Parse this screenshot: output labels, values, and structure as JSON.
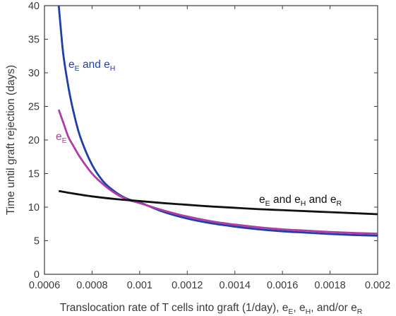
{
  "chart_data": {
    "type": "line",
    "xlabel": {
      "main": "Translocation rate of T cells into graft (1/day), e",
      "sub1": "E",
      "sep1": ", e",
      "sub2": "H",
      "sep2": ", and/or e",
      "sub3": "R"
    },
    "ylabel": "Time until graft rejection (days)",
    "xlim": [
      0.0006,
      0.002
    ],
    "ylim": [
      0,
      40
    ],
    "xticks": [
      0.0006,
      0.0008,
      0.001,
      0.0012,
      0.0014,
      0.0016,
      0.0018,
      0.002
    ],
    "xtick_labels": [
      "0.0006",
      "0.0008",
      "0.001",
      "0.0012",
      "0.0014",
      "0.0016",
      "0.0018",
      "0.002"
    ],
    "yticks": [
      0,
      5,
      10,
      15,
      20,
      25,
      30,
      35,
      40
    ],
    "ytick_labels": [
      "0",
      "5",
      "10",
      "15",
      "20",
      "25",
      "30",
      "35",
      "40"
    ],
    "grid": false,
    "series": [
      {
        "name": "eE and eH",
        "label_parts": [
          "e",
          "E",
          " and e",
          "H"
        ],
        "color": "#1f3fa6",
        "x": [
          0.00066,
          0.00067,
          0.00068,
          0.0007,
          0.00072,
          0.00075,
          0.0008,
          0.00085,
          0.0009,
          0.00095,
          0.001,
          0.0011,
          0.0012,
          0.0013,
          0.0014,
          0.0015,
          0.0016,
          0.0017,
          0.0018,
          0.0019,
          0.002
        ],
        "y": [
          40,
          36,
          32.5,
          28,
          24.5,
          20.5,
          16.3,
          13.7,
          12.2,
          11.2,
          10.7,
          9.3,
          8.3,
          7.6,
          7.1,
          6.7,
          6.4,
          6.2,
          6.0,
          5.85,
          5.75
        ]
      },
      {
        "name": "eE",
        "label_parts": [
          "e",
          "E"
        ],
        "color": "#b03ca8",
        "x": [
          0.00066,
          0.00068,
          0.0007,
          0.00072,
          0.00075,
          0.0008,
          0.00085,
          0.0009,
          0.00095,
          0.001,
          0.0011,
          0.0012,
          0.0013,
          0.0014,
          0.0015,
          0.0016,
          0.0017,
          0.0018,
          0.0019,
          0.002
        ],
        "y": [
          24.5,
          22.5,
          20.5,
          19.2,
          17.4,
          15.0,
          13.3,
          12.0,
          11.1,
          10.6,
          9.5,
          8.6,
          7.9,
          7.4,
          7.0,
          6.7,
          6.5,
          6.3,
          6.15,
          6.05
        ]
      },
      {
        "name": "eE and eH and eR",
        "label_parts": [
          "e",
          "E",
          " and e",
          "H",
          " and e",
          "R"
        ],
        "color": "#111111",
        "x": [
          0.00066,
          0.0007,
          0.0008,
          0.0009,
          0.001,
          0.0011,
          0.0012,
          0.0013,
          0.0014,
          0.0015,
          0.0016,
          0.0017,
          0.0018,
          0.0019,
          0.002
        ],
        "y": [
          12.4,
          12.15,
          11.6,
          11.2,
          10.9,
          10.6,
          10.35,
          10.1,
          9.9,
          9.7,
          9.55,
          9.4,
          9.25,
          9.1,
          8.95
        ]
      }
    ]
  }
}
